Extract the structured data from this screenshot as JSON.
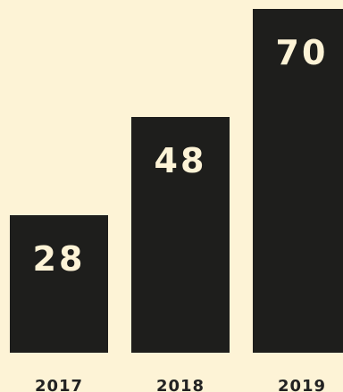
{
  "colors": {
    "background": "#fdf3d6",
    "bar": "#1e1e1c",
    "bar_label": "#fdf3d6",
    "tick_label": "#222222"
  },
  "chart_data": {
    "type": "bar",
    "categories": [
      "2017",
      "2018",
      "2019"
    ],
    "values": [
      28,
      48,
      70
    ],
    "data_labels": [
      "28",
      "48",
      "70"
    ],
    "title": "",
    "xlabel": "",
    "ylabel": "",
    "ylim": [
      0,
      70
    ],
    "grid": false,
    "legend": "none"
  }
}
